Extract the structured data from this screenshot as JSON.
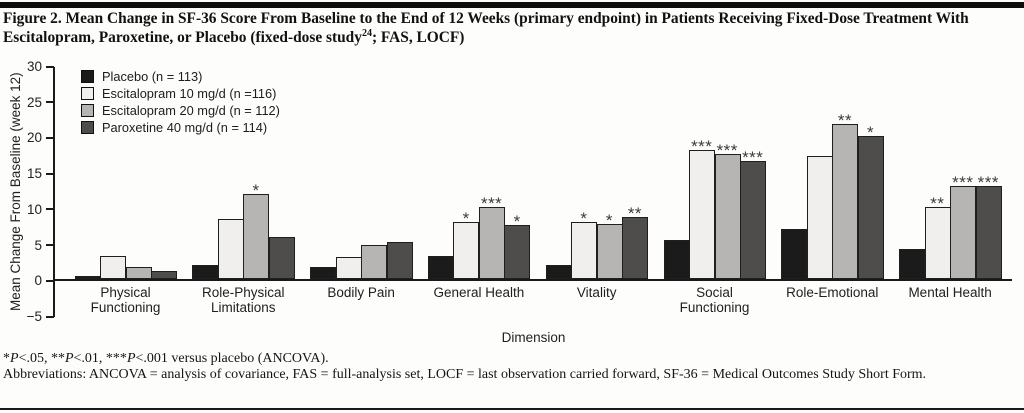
{
  "figure": {
    "title_part1": "Figure 2. Mean Change in SF-36 Score From Baseline to the End of 12 Weeks (primary endpoint) in Patients Receiving Fixed-Dose Treatment With Escitalopram, Paroxetine, or Placebo (fixed-dose study",
    "title_sup": "24",
    "title_part2": "; FAS, LOCF)"
  },
  "chart_data": {
    "type": "bar",
    "title": "",
    "xlabel": "Dimension",
    "ylabel": "Mean Change From Baseline (week 12)",
    "ylim": [
      -5,
      30
    ],
    "yticks": [
      30,
      25,
      20,
      15,
      10,
      5,
      0,
      -5
    ],
    "grid": false,
    "legend_position": "top-left-inside",
    "categories": [
      "Physical Functioning",
      "Role-Physical Limitations",
      "Bodily Pain",
      "General Health",
      "Vitality",
      "Social Functioning",
      "Role-Emotional",
      "Mental Health"
    ],
    "series": [
      {
        "name": "Placebo (n = 113)",
        "color": "#1b1b1b",
        "values": [
          0.5,
          2.0,
          1.7,
          3.2,
          2.0,
          5.5,
          7.0,
          4.3
        ],
        "sig": [
          "",
          "",
          "",
          "",
          "",
          "",
          "",
          ""
        ]
      },
      {
        "name": "Escitalopram 10 mg/d (n =116)",
        "color": "#f0efed",
        "values": [
          3.3,
          8.4,
          3.1,
          8.0,
          8.0,
          18.1,
          17.3,
          10.1
        ],
        "sig": [
          "",
          "",
          "",
          "*",
          "*",
          "***",
          "",
          "**"
        ]
      },
      {
        "name": "Escitalopram 20 mg/d (n = 112)",
        "color": "#b6b5b3",
        "values": [
          1.7,
          12.0,
          4.8,
          10.1,
          7.8,
          17.5,
          21.7,
          13.0
        ],
        "sig": [
          "",
          "*",
          "",
          "***",
          "*",
          "***",
          "**",
          "***"
        ]
      },
      {
        "name": "Paroxetine 40 mg/d (n = 114)",
        "color": "#4e4d4b",
        "values": [
          1.2,
          5.9,
          5.2,
          7.6,
          8.7,
          16.5,
          20.1,
          13.0
        ],
        "sig": [
          "",
          "",
          "",
          "*",
          "**",
          "***",
          "*",
          "***"
        ]
      }
    ]
  },
  "footnotes": {
    "significance_segments": [
      {
        "text": "*"
      },
      {
        "text": "P",
        "italic": true
      },
      {
        "text": "<.05, **"
      },
      {
        "text": "P",
        "italic": true
      },
      {
        "text": "<.01, ***"
      },
      {
        "text": "P",
        "italic": true
      },
      {
        "text": "<.001 versus placebo (ANCOVA)."
      }
    ],
    "abbreviations": "Abbreviations: ANCOVA = analysis of covariance, FAS = full-analysis set, LOCF = last observation carried forward, SF-36 = Medical Outcomes Study Short Form."
  }
}
